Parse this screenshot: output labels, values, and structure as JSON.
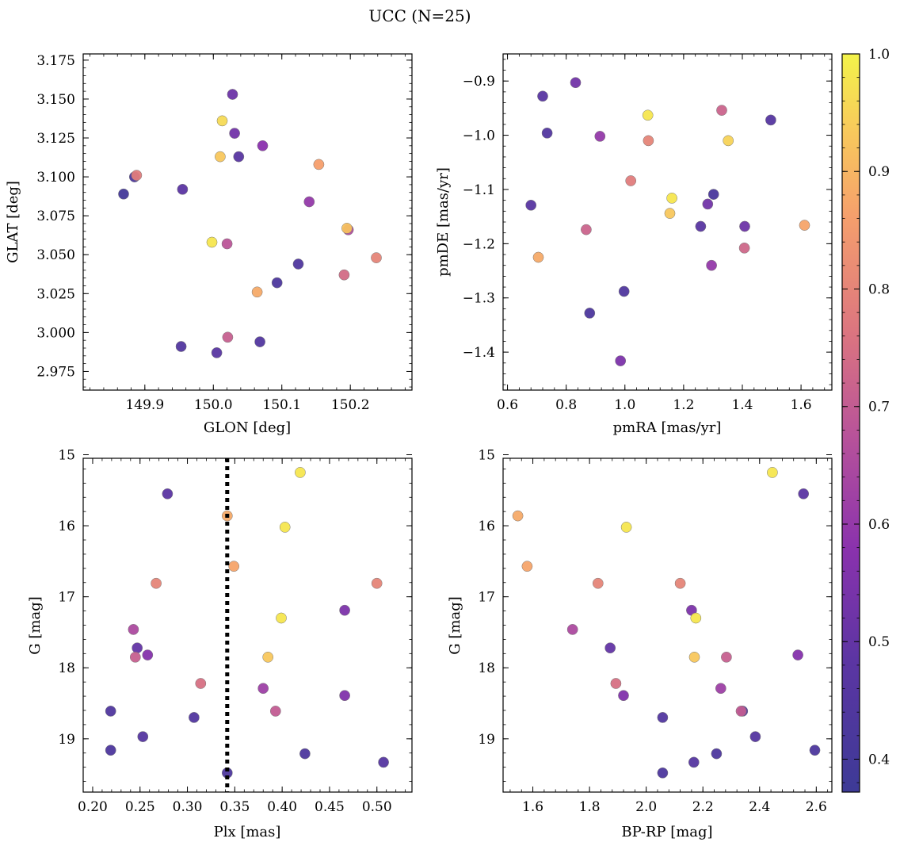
{
  "chart_data": [
    {
      "type": "scatter",
      "title": "UCC (N=25)",
      "panels": [
        {
          "id": "spatial",
          "xlabel": "GLON [deg]",
          "ylabel": "GLAT [deg]",
          "xlim": [
            149.81,
            150.29
          ],
          "ylim": [
            2.963,
            3.179
          ],
          "xticks": [
            149.9,
            150.0,
            150.1,
            150.2
          ],
          "xtick_labels": [
            "149.9",
            "150.0",
            "150.1",
            "150.2"
          ],
          "yticks": [
            2.975,
            3.0,
            3.025,
            3.05,
            3.075,
            3.1,
            3.125,
            3.15,
            3.175
          ],
          "ytick_labels": [
            "2.975",
            "3.000",
            "3.025",
            "3.050",
            "3.075",
            "3.100",
            "3.125",
            "3.150",
            "3.175"
          ],
          "invert_y": false,
          "points": [
            {
              "x": 149.869,
              "y": 3.089,
              "p": 0.4
            },
            {
              "x": 149.885,
              "y": 3.1,
              "p": 0.43
            },
            {
              "x": 149.888,
              "y": 3.101,
              "p": 0.78
            },
            {
              "x": 149.953,
              "y": 2.991,
              "p": 0.45
            },
            {
              "x": 149.955,
              "y": 3.092,
              "p": 0.48
            },
            {
              "x": 149.998,
              "y": 3.058,
              "p": 0.98
            },
            {
              "x": 150.005,
              "y": 2.987,
              "p": 0.47
            },
            {
              "x": 150.01,
              "y": 3.113,
              "p": 0.93
            },
            {
              "x": 150.013,
              "y": 3.136,
              "p": 0.96
            },
            {
              "x": 150.02,
              "y": 3.057,
              "p": 0.68
            },
            {
              "x": 150.021,
              "y": 2.997,
              "p": 0.71
            },
            {
              "x": 150.028,
              "y": 3.153,
              "p": 0.52
            },
            {
              "x": 150.031,
              "y": 3.128,
              "p": 0.53
            },
            {
              "x": 150.037,
              "y": 3.113,
              "p": 0.47
            },
            {
              "x": 150.064,
              "y": 3.026,
              "p": 0.88
            },
            {
              "x": 150.068,
              "y": 2.994,
              "p": 0.45
            },
            {
              "x": 150.072,
              "y": 3.12,
              "p": 0.58
            },
            {
              "x": 150.093,
              "y": 3.032,
              "p": 0.43
            },
            {
              "x": 150.124,
              "y": 3.044,
              "p": 0.44
            },
            {
              "x": 150.14,
              "y": 3.084,
              "p": 0.6
            },
            {
              "x": 150.154,
              "y": 3.108,
              "p": 0.86
            },
            {
              "x": 150.191,
              "y": 3.037,
              "p": 0.74
            },
            {
              "x": 150.197,
              "y": 3.066,
              "p": 0.66
            },
            {
              "x": 150.195,
              "y": 3.067,
              "p": 0.92
            },
            {
              "x": 150.238,
              "y": 3.048,
              "p": 0.8
            }
          ]
        },
        {
          "id": "proper-motion",
          "xlabel": "pmRA [mas/yr]",
          "ylabel": "pmDE [mas/yr]",
          "xlim": [
            0.585,
            1.705
          ],
          "ylim": [
            -1.47,
            -0.85
          ],
          "xticks": [
            0.6,
            0.8,
            1.0,
            1.2,
            1.4,
            1.6
          ],
          "xtick_labels": [
            "0.6",
            "0.8",
            "1.0",
            "1.2",
            "1.4",
            "1.6"
          ],
          "yticks": [
            -1.4,
            -1.3,
            -1.2,
            -1.1,
            -1.0,
            -0.9
          ],
          "ytick_labels": [
            "−1.4",
            "−1.3",
            "−1.2",
            "−1.1",
            "−1.0",
            "−0.9"
          ],
          "invert_y": false,
          "points": [
            {
              "x": 0.72,
              "y": -0.928,
              "p": 0.47
            },
            {
              "x": 0.735,
              "y": -0.996,
              "p": 0.45
            },
            {
              "x": 0.832,
              "y": -0.903,
              "p": 0.53
            },
            {
              "x": 0.915,
              "y": -1.002,
              "p": 0.6
            },
            {
              "x": 1.078,
              "y": -0.963,
              "p": 0.98
            },
            {
              "x": 1.08,
              "y": -1.01,
              "p": 0.8
            },
            {
              "x": 1.33,
              "y": -0.954,
              "p": 0.72
            },
            {
              "x": 1.352,
              "y": -1.01,
              "p": 0.95
            },
            {
              "x": 1.497,
              "y": -0.972,
              "p": 0.46
            },
            {
              "x": 1.02,
              "y": -1.084,
              "p": 0.78
            },
            {
              "x": 1.16,
              "y": -1.116,
              "p": 0.98
            },
            {
              "x": 1.302,
              "y": -1.109,
              "p": 0.42
            },
            {
              "x": 1.153,
              "y": -1.144,
              "p": 0.93
            },
            {
              "x": 1.282,
              "y": -1.127,
              "p": 0.53
            },
            {
              "x": 0.68,
              "y": -1.129,
              "p": 0.47
            },
            {
              "x": 0.868,
              "y": -1.174,
              "p": 0.72
            },
            {
              "x": 1.258,
              "y": -1.168,
              "p": 0.47
            },
            {
              "x": 1.408,
              "y": -1.168,
              "p": 0.52
            },
            {
              "x": 1.612,
              "y": -1.166,
              "p": 0.87
            },
            {
              "x": 1.407,
              "y": -1.208,
              "p": 0.73
            },
            {
              "x": 0.705,
              "y": -1.225,
              "p": 0.88
            },
            {
              "x": 1.295,
              "y": -1.24,
              "p": 0.6
            },
            {
              "x": 0.997,
              "y": -1.288,
              "p": 0.44
            },
            {
              "x": 0.88,
              "y": -1.328,
              "p": 0.43
            },
            {
              "x": 0.985,
              "y": -1.416,
              "p": 0.55
            }
          ]
        },
        {
          "id": "plx-g",
          "xlabel": "Plx [mas]",
          "ylabel": "G [mag]",
          "xlim": [
            0.19,
            0.537
          ],
          "ylim": [
            15.05,
            19.75
          ],
          "xticks": [
            0.2,
            0.25,
            0.3,
            0.35,
            0.4,
            0.45,
            0.5
          ],
          "xtick_labels": [
            "0.20",
            "0.25",
            "0.30",
            "0.35",
            "0.40",
            "0.45",
            "0.50"
          ],
          "yticks": [
            15,
            16,
            17,
            18,
            19
          ],
          "ytick_labels": [
            "15",
            "16",
            "17",
            "18",
            "19"
          ],
          "invert_y": true,
          "vline": {
            "x": 0.342,
            "style": "dotted"
          },
          "points": [
            {
              "x": 0.419,
              "y": 15.25,
              "p": 0.98
            },
            {
              "x": 0.279,
              "y": 15.55,
              "p": 0.48
            },
            {
              "x": 0.342,
              "y": 15.86,
              "p": 0.88
            },
            {
              "x": 0.403,
              "y": 16.02,
              "p": 0.98
            },
            {
              "x": 0.349,
              "y": 16.57,
              "p": 0.87
            },
            {
              "x": 0.267,
              "y": 16.81,
              "p": 0.8
            },
            {
              "x": 0.5,
              "y": 16.81,
              "p": 0.8
            },
            {
              "x": 0.466,
              "y": 17.19,
              "p": 0.55
            },
            {
              "x": 0.399,
              "y": 17.3,
              "p": 0.98
            },
            {
              "x": 0.243,
              "y": 17.46,
              "p": 0.65
            },
            {
              "x": 0.247,
              "y": 17.72,
              "p": 0.5
            },
            {
              "x": 0.258,
              "y": 17.82,
              "p": 0.57
            },
            {
              "x": 0.245,
              "y": 17.85,
              "p": 0.71
            },
            {
              "x": 0.385,
              "y": 17.85,
              "p": 0.93
            },
            {
              "x": 0.314,
              "y": 18.22,
              "p": 0.75
            },
            {
              "x": 0.38,
              "y": 18.29,
              "p": 0.62
            },
            {
              "x": 0.466,
              "y": 18.39,
              "p": 0.56
            },
            {
              "x": 0.219,
              "y": 18.61,
              "p": 0.44
            },
            {
              "x": 0.393,
              "y": 18.61,
              "p": 0.7
            },
            {
              "x": 0.307,
              "y": 18.7,
              "p": 0.45
            },
            {
              "x": 0.253,
              "y": 18.97,
              "p": 0.46
            },
            {
              "x": 0.219,
              "y": 19.16,
              "p": 0.43
            },
            {
              "x": 0.424,
              "y": 19.21,
              "p": 0.43
            },
            {
              "x": 0.507,
              "y": 19.33,
              "p": 0.46
            },
            {
              "x": 0.342,
              "y": 19.48,
              "p": 0.43
            }
          ]
        },
        {
          "id": "cmd",
          "xlabel": "BP-RP [mag]",
          "ylabel": "G [mag]",
          "xlim": [
            1.495,
            2.655
          ],
          "ylim": [
            15.05,
            19.75
          ],
          "xticks": [
            1.6,
            1.8,
            2.0,
            2.2,
            2.4,
            2.6
          ],
          "xtick_labels": [
            "1.6",
            "1.8",
            "2.0",
            "2.2",
            "2.4",
            "2.6"
          ],
          "yticks": [
            15,
            16,
            17,
            18,
            19
          ],
          "ytick_labels": [
            "15",
            "16",
            "17",
            "18",
            "19"
          ],
          "invert_y": true,
          "points": [
            {
              "x": 2.445,
              "y": 15.25,
              "p": 0.98
            },
            {
              "x": 2.555,
              "y": 15.55,
              "p": 0.48
            },
            {
              "x": 1.547,
              "y": 15.86,
              "p": 0.88
            },
            {
              "x": 1.93,
              "y": 16.02,
              "p": 0.98
            },
            {
              "x": 1.58,
              "y": 16.57,
              "p": 0.87
            },
            {
              "x": 1.83,
              "y": 16.81,
              "p": 0.8
            },
            {
              "x": 2.12,
              "y": 16.81,
              "p": 0.8
            },
            {
              "x": 2.16,
              "y": 17.19,
              "p": 0.55
            },
            {
              "x": 2.175,
              "y": 17.3,
              "p": 0.98
            },
            {
              "x": 1.74,
              "y": 17.46,
              "p": 0.65
            },
            {
              "x": 1.873,
              "y": 17.72,
              "p": 0.5
            },
            {
              "x": 2.535,
              "y": 17.82,
              "p": 0.57
            },
            {
              "x": 2.283,
              "y": 17.85,
              "p": 0.71
            },
            {
              "x": 2.17,
              "y": 17.85,
              "p": 0.93
            },
            {
              "x": 1.893,
              "y": 18.22,
              "p": 0.75
            },
            {
              "x": 2.263,
              "y": 18.29,
              "p": 0.62
            },
            {
              "x": 1.92,
              "y": 18.39,
              "p": 0.56
            },
            {
              "x": 2.34,
              "y": 18.61,
              "p": 0.44
            },
            {
              "x": 2.335,
              "y": 18.61,
              "p": 0.7
            },
            {
              "x": 2.058,
              "y": 18.7,
              "p": 0.45
            },
            {
              "x": 2.385,
              "y": 18.97,
              "p": 0.46
            },
            {
              "x": 2.595,
              "y": 19.16,
              "p": 0.43
            },
            {
              "x": 2.248,
              "y": 19.21,
              "p": 0.43
            },
            {
              "x": 2.168,
              "y": 19.33,
              "p": 0.46
            },
            {
              "x": 2.058,
              "y": 19.48,
              "p": 0.43
            }
          ]
        }
      ],
      "colorbar": {
        "colormap": "plasma",
        "range": [
          0.372,
          1.0
        ],
        "ticks": [
          0.4,
          0.5,
          0.6,
          0.7,
          0.8,
          0.9,
          1.0
        ],
        "tick_labels": [
          "0.4",
          "0.5",
          "0.6",
          "0.7",
          "0.8",
          "0.9",
          "1.0"
        ]
      }
    }
  ]
}
